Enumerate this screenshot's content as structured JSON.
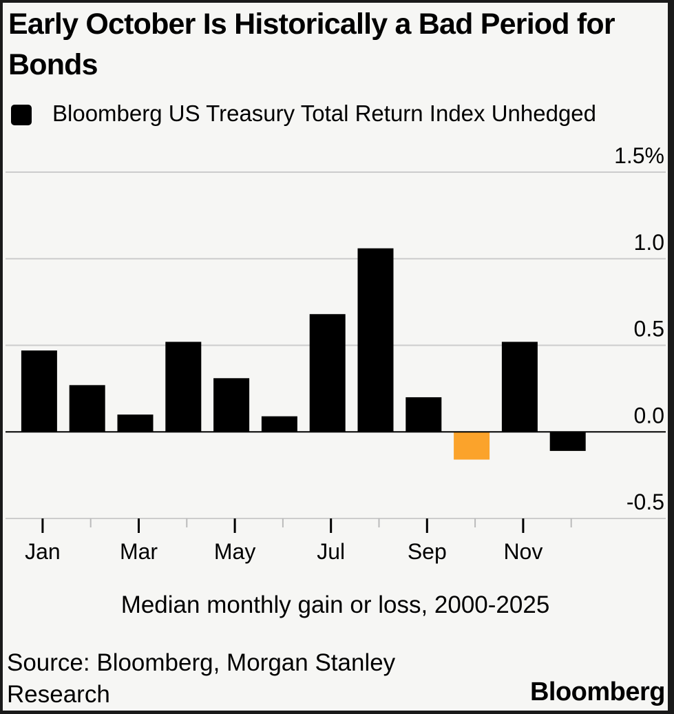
{
  "title": "Early October Is Historically a Bad Period for Bonds",
  "legend": {
    "label": "Bloomberg US Treasury Total Return Index Unhedged"
  },
  "subtitle": "Median monthly gain or loss, 2000-2025",
  "source": "Source: Bloomberg, Morgan Stanley Research",
  "brand": "Bloomberg",
  "colors": {
    "default_bar": "#000000",
    "highlight_bar": "#fba32b",
    "grid": "#cccccc",
    "background": "#f6f6f4"
  },
  "chart_data": {
    "type": "bar",
    "title": "Early October Is Historically a Bad Period for Bonds",
    "xlabel": "Median monthly gain or loss, 2000-2025",
    "ylabel": "",
    "ylim": [
      -0.5,
      1.5
    ],
    "yticks": [
      {
        "value": 1.5,
        "label": "1.5%"
      },
      {
        "value": 1.0,
        "label": "1.0"
      },
      {
        "value": 0.5,
        "label": "0.5"
      },
      {
        "value": 0.0,
        "label": "0.0"
      },
      {
        "value": -0.5,
        "label": "-0.5"
      }
    ],
    "categories": [
      "Jan",
      "Feb",
      "Mar",
      "Apr",
      "May",
      "Jun",
      "Jul",
      "Aug",
      "Sep",
      "Oct",
      "Nov",
      "Dec"
    ],
    "xtick_labels": [
      "Jan",
      "",
      "Mar",
      "",
      "May",
      "",
      "Jul",
      "",
      "Sep",
      "",
      "Nov",
      ""
    ],
    "series": [
      {
        "name": "Bloomberg US Treasury Total Return Index Unhedged",
        "values": [
          0.47,
          0.27,
          0.1,
          0.52,
          0.31,
          0.09,
          0.68,
          1.06,
          0.2,
          -0.16,
          0.52,
          -0.11
        ]
      }
    ],
    "highlight": [
      "Oct"
    ],
    "legend_position": "top-left",
    "grid": true
  }
}
